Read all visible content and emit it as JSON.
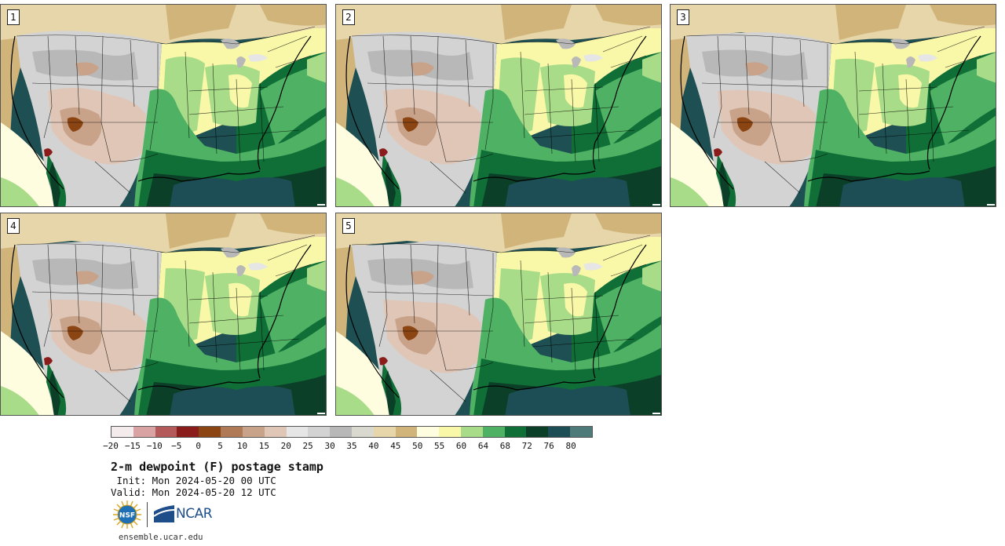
{
  "panels": [
    {
      "label": "1"
    },
    {
      "label": "2"
    },
    {
      "label": "3"
    },
    {
      "label": "4"
    },
    {
      "label": "5"
    }
  ],
  "colorbar": {
    "colors": [
      "#f4ecec",
      "#d9a3a3",
      "#b55a5a",
      "#8a1c1c",
      "#8b4513",
      "#b07a56",
      "#c9a28a",
      "#e0c6b6",
      "#e6e6e6",
      "#d3d3d3",
      "#b8b8b8",
      "#d9d9d0",
      "#e6d6aa",
      "#d0b47a",
      "#fffde0",
      "#f8f8a8",
      "#a8dc88",
      "#4fb164",
      "#0f6f36",
      "#0c3f28",
      "#1d4e55",
      "#4e7a7a"
    ],
    "tick_labels": [
      "−20",
      "−15",
      "−10",
      "−5",
      "0",
      "5",
      "10",
      "15",
      "20",
      "25",
      "30",
      "35",
      "40",
      "45",
      "50",
      "55",
      "60",
      "64",
      "68",
      "72",
      "76",
      "80"
    ]
  },
  "title": "2-m dewpoint (F) postage stamp",
  "init_line": " Init: Mon 2024-05-20 00 UTC",
  "valid_line": "Valid: Mon 2024-05-20 12 UTC",
  "logos": {
    "nsf": "NSF",
    "ncar": "NCAR"
  },
  "website": "ensemble.ucar.edu"
}
